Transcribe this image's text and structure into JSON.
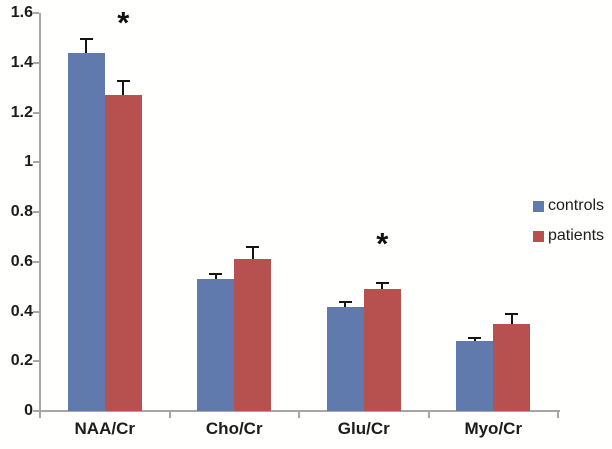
{
  "chart_data": {
    "type": "bar",
    "title": "",
    "xlabel": "",
    "ylabel": "",
    "categories": [
      "NAA/Cr",
      "Cho/Cr",
      "Glu/Cr",
      "Myo/Cr"
    ],
    "series": [
      {
        "name": "controls",
        "color": "#617aad",
        "values": [
          1.44,
          0.53,
          0.42,
          0.28
        ],
        "errors_upper": [
          0.055,
          0.02,
          0.02,
          0.015
        ]
      },
      {
        "name": "patients",
        "color": "#b65150",
        "values": [
          1.27,
          0.61,
          0.49,
          0.35
        ],
        "errors_upper": [
          0.055,
          0.05,
          0.025,
          0.04
        ]
      }
    ],
    "error_bars": "upper-only",
    "significance_markers": [
      {
        "category": "NAA/Cr",
        "series": "patients",
        "symbol": "*",
        "y_value": 1.58
      },
      {
        "category": "Glu/Cr",
        "series": "patients",
        "symbol": "*",
        "y_value": 0.69
      }
    ],
    "ylim": [
      0,
      1.6
    ],
    "ytick_step": 0.2,
    "ytick_labels": [
      "0",
      "0.2",
      "0.4",
      "0.6",
      "0.8",
      "1",
      "1.2",
      "1.4",
      "1.6"
    ],
    "grid": false,
    "legend_position": "right",
    "colors": {
      "axis": "#a6a6a6",
      "text": "#1c1c1c",
      "error_bar": "#141414",
      "background": "#fffffe"
    }
  }
}
